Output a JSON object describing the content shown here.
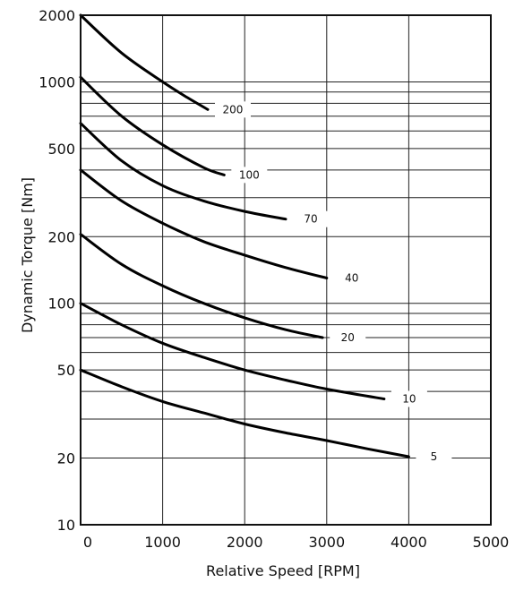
{
  "chart_data": {
    "type": "line",
    "title": "",
    "xlabel": "Relative Speed [RPM]",
    "ylabel": "Dynamic Torque [Nm]",
    "x_scale": "linear",
    "y_scale": "log",
    "xlim": [
      0,
      5000
    ],
    "ylim": [
      10,
      2000
    ],
    "x_ticks": [
      "0",
      "1000",
      "2000",
      "3000",
      "4000",
      "5000"
    ],
    "y_ticks": [
      "10",
      "20",
      "50",
      "100",
      "200",
      "500",
      "1000",
      "2000"
    ],
    "grid": true,
    "series": [
      {
        "name": "200",
        "x": [
          0,
          500,
          1000,
          1300,
          1550
        ],
        "y": [
          2000,
          1350,
          1000,
          850,
          750
        ]
      },
      {
        "name": "100",
        "x": [
          0,
          500,
          1000,
          1500,
          1750
        ],
        "y": [
          1050,
          700,
          520,
          410,
          380
        ]
      },
      {
        "name": "70",
        "x": [
          0,
          500,
          1000,
          1500,
          2000,
          2500
        ],
        "y": [
          650,
          440,
          340,
          290,
          260,
          240
        ]
      },
      {
        "name": "40",
        "x": [
          0,
          500,
          1000,
          1500,
          2000,
          2500,
          3000
        ],
        "y": [
          400,
          290,
          230,
          190,
          165,
          145,
          130
        ]
      },
      {
        "name": "20",
        "x": [
          0,
          500,
          1000,
          1500,
          2000,
          2500,
          2950
        ],
        "y": [
          205,
          150,
          120,
          100,
          86,
          76,
          70
        ]
      },
      {
        "name": "10",
        "x": [
          0,
          500,
          1000,
          1500,
          2000,
          2500,
          3000,
          3700
        ],
        "y": [
          100,
          80,
          66,
          57,
          50,
          45,
          41,
          37
        ]
      },
      {
        "name": "5",
        "x": [
          0,
          500,
          1000,
          1500,
          2000,
          2500,
          3000,
          3500,
          4000
        ],
        "y": [
          50,
          42,
          36,
          32,
          28.5,
          26,
          24,
          22,
          20.3
        ]
      }
    ]
  }
}
